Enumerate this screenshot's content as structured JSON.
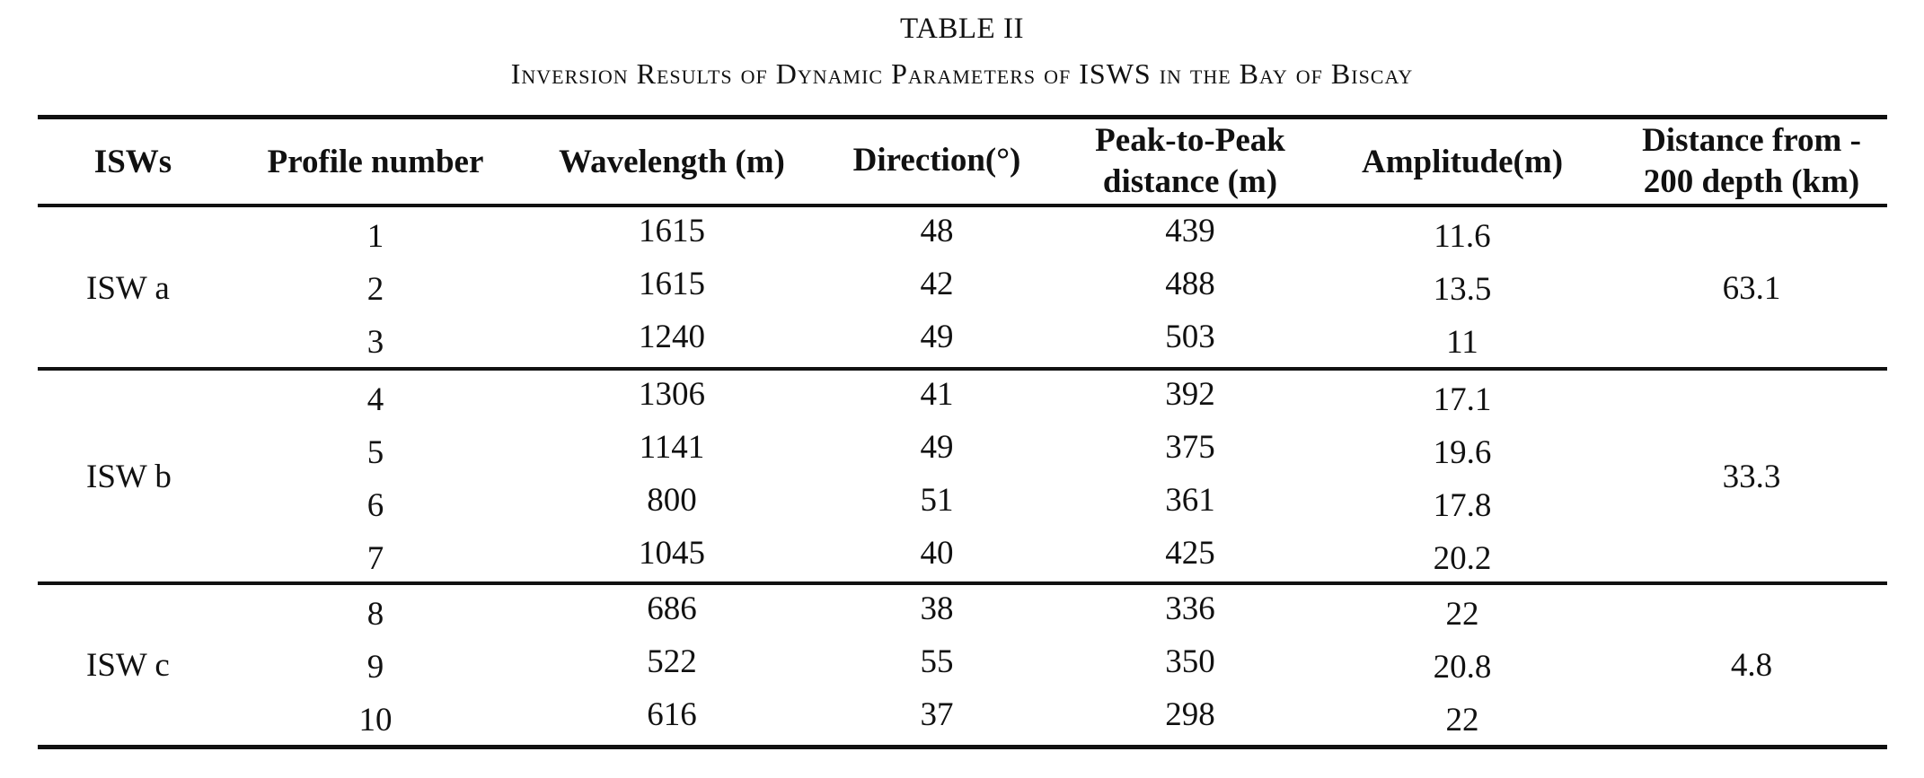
{
  "caption": {
    "label": "TABLE II",
    "title": "Inversion Results of Dynamic Parameters of ISWS in the Bay of Biscay"
  },
  "headers": {
    "isws": "ISWs",
    "profile": "Profile number",
    "wavelength": "Wavelength (m)",
    "direction": "Direction(°)",
    "peak_line1": "Peak-to-Peak",
    "peak_line2": "distance (m)",
    "amplitude": "Amplitude(m)",
    "distance_line1": "Distance from -",
    "distance_line2": "200 depth (km)"
  },
  "groups": [
    {
      "name": "ISW a",
      "distance": "63.1",
      "rows": [
        {
          "profile": "1",
          "wavelength": "1615",
          "direction": "48",
          "peak": "439",
          "amplitude": "11.6"
        },
        {
          "profile": "2",
          "wavelength": "1615",
          "direction": "42",
          "peak": "488",
          "amplitude": "13.5"
        },
        {
          "profile": "3",
          "wavelength": "1240",
          "direction": "49",
          "peak": "503",
          "amplitude": "11"
        }
      ]
    },
    {
      "name": "ISW b",
      "distance": "33.3",
      "rows": [
        {
          "profile": "4",
          "wavelength": "1306",
          "direction": "41",
          "peak": "392",
          "amplitude": "17.1"
        },
        {
          "profile": "5",
          "wavelength": "1141",
          "direction": "49",
          "peak": "375",
          "amplitude": "19.6"
        },
        {
          "profile": "6",
          "wavelength": "800",
          "direction": "51",
          "peak": "361",
          "amplitude": "17.8"
        },
        {
          "profile": "7",
          "wavelength": "1045",
          "direction": "40",
          "peak": "425",
          "amplitude": "20.2"
        }
      ]
    },
    {
      "name": "ISW c",
      "distance": "4.8",
      "rows": [
        {
          "profile": "8",
          "wavelength": "686",
          "direction": "38",
          "peak": "336",
          "amplitude": "22"
        },
        {
          "profile": "9",
          "wavelength": "522",
          "direction": "55",
          "peak": "350",
          "amplitude": "20.8"
        },
        {
          "profile": "10",
          "wavelength": "616",
          "direction": "37",
          "peak": "298",
          "amplitude": "22"
        }
      ]
    }
  ]
}
